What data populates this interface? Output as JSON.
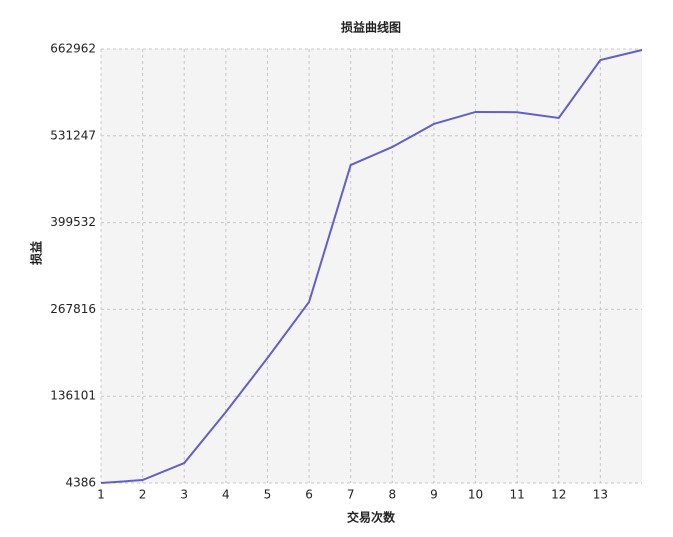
{
  "chart_data": {
    "type": "line",
    "title": "损益曲线图",
    "x_label": "交易次数",
    "y_label": "损益",
    "x": [
      1,
      2,
      3,
      4,
      5,
      6,
      7,
      8,
      9,
      10,
      11,
      12,
      13,
      14
    ],
    "series": [
      {
        "color": "#6060c8",
        "values": [
          4386,
          8900,
          34700,
          112100,
          194000,
          279100,
          486900,
          514300,
          549200,
          567400,
          567000,
          558300,
          646300,
          661400
        ]
      }
    ],
    "xlim": [
      1,
      14
    ],
    "xticks": [
      1,
      2,
      3,
      4,
      5,
      6,
      7,
      8,
      9,
      10,
      11,
      12,
      13
    ],
    "ylim": [
      4386,
      662962
    ],
    "yticks": [
      4386,
      136101,
      267816,
      399532,
      531247,
      662962
    ],
    "grid": true
  }
}
